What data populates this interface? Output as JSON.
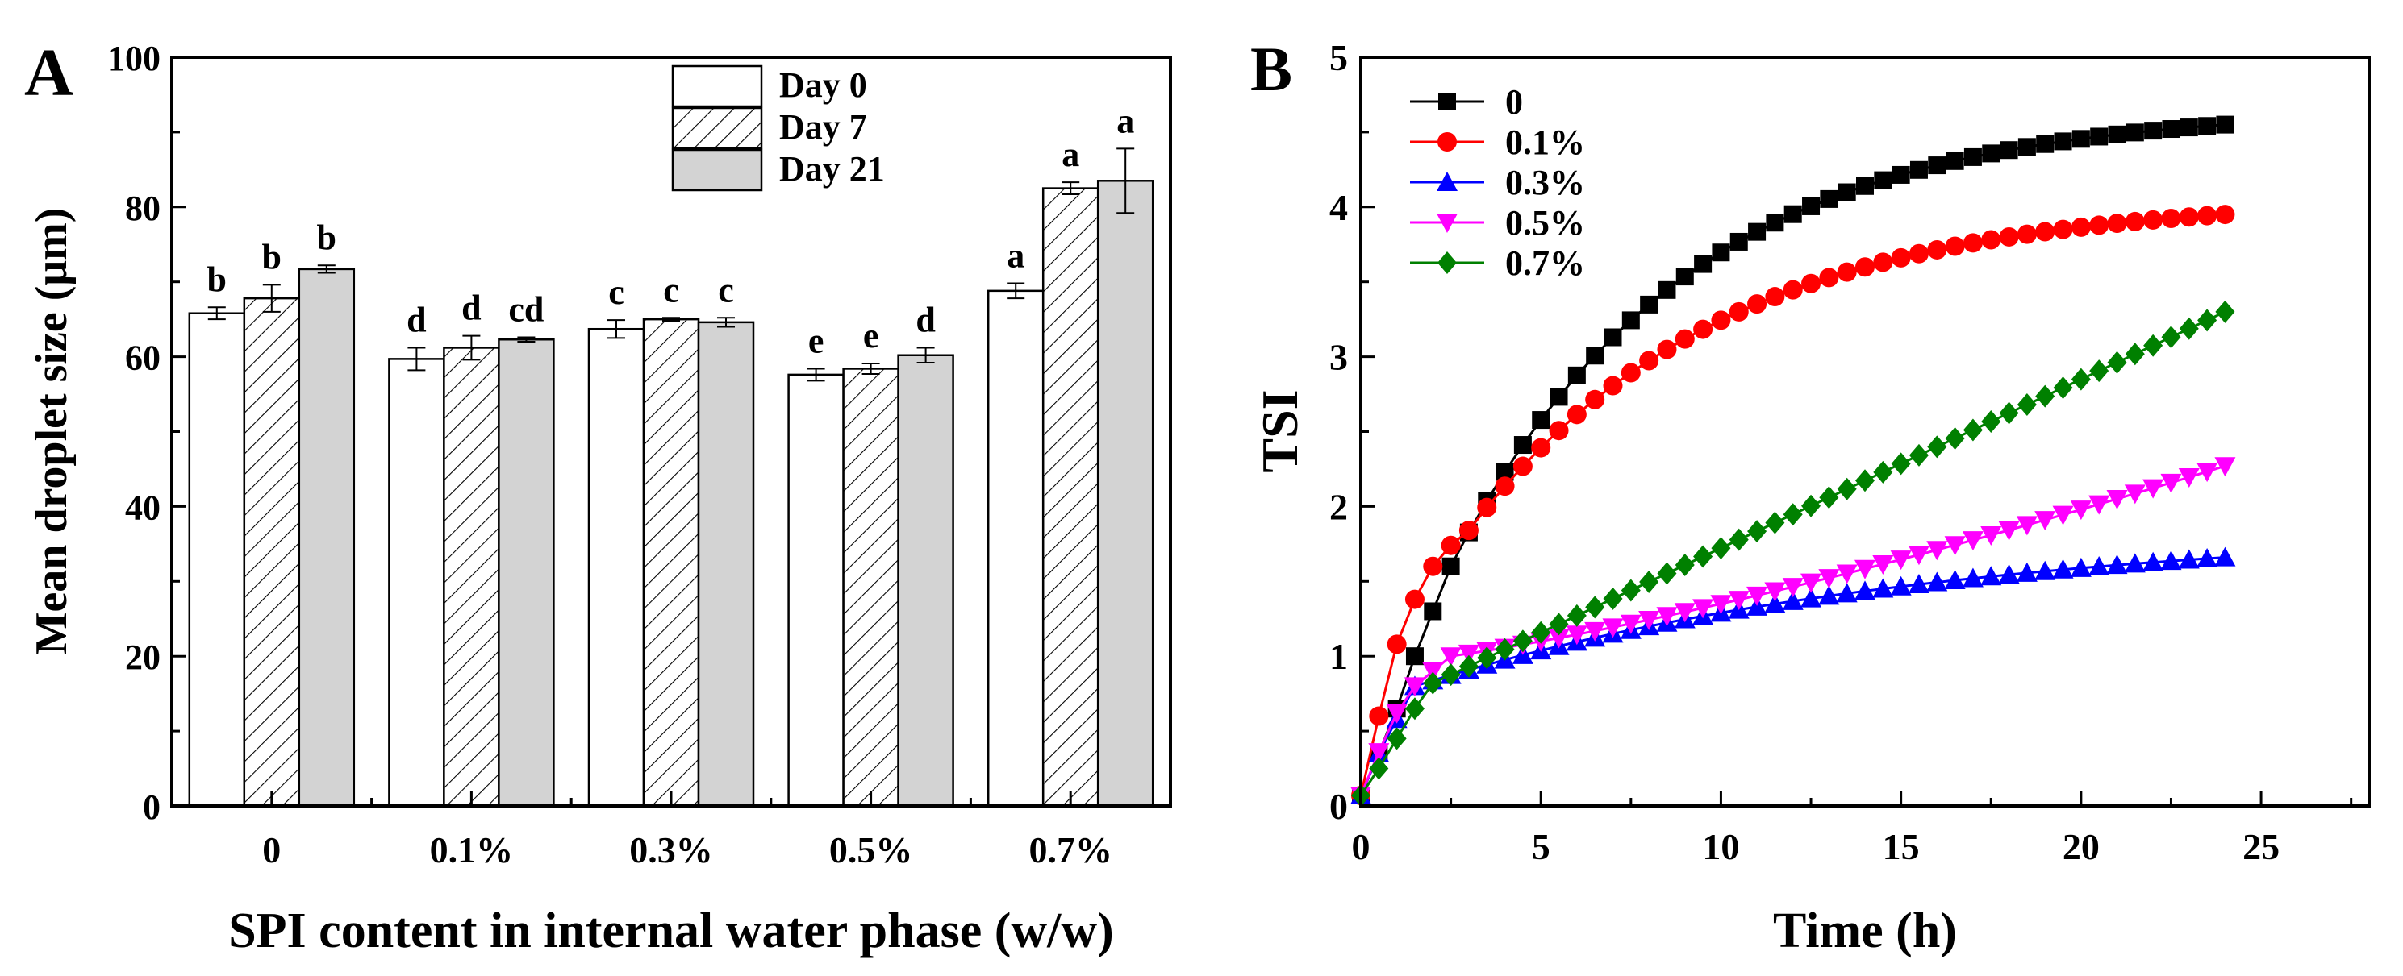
{
  "chart_data": [
    {
      "type": "bar",
      "panel_label": "A",
      "title": "",
      "xlabel": "SPI content in internal water phase (w/w)",
      "ylabel": "Mean droplet size (μm)",
      "ylim": [
        0,
        100
      ],
      "yticks": [
        0,
        20,
        40,
        60,
        80,
        100
      ],
      "categories": [
        "0",
        "0.1%",
        "0.3%",
        "0.5%",
        "0.7%"
      ],
      "legend_position": "top-center",
      "series": [
        {
          "name": "Day 0",
          "fill": "white",
          "values": [
            65.8,
            59.7,
            63.7,
            57.6,
            68.8
          ],
          "errors": [
            0.8,
            1.5,
            1.2,
            0.8,
            1.0
          ],
          "letters": [
            "b",
            "d",
            "c",
            "e",
            "a"
          ]
        },
        {
          "name": "Day 7",
          "fill": "hatched",
          "values": [
            67.8,
            61.2,
            65.0,
            58.4,
            82.5
          ],
          "errors": [
            1.8,
            1.6,
            0.2,
            0.7,
            0.8
          ],
          "letters": [
            "b",
            "d",
            "c",
            "e",
            "a"
          ]
        },
        {
          "name": "Day 21",
          "fill": "grey",
          "values": [
            71.7,
            62.3,
            64.6,
            60.2,
            83.5
          ],
          "errors": [
            0.5,
            0.3,
            0.6,
            1.0,
            4.3
          ],
          "letters": [
            "b",
            "cd",
            "c",
            "d",
            "a"
          ]
        }
      ]
    },
    {
      "type": "line",
      "panel_label": "B",
      "title": "",
      "xlabel": "Time (h)",
      "ylabel": "TSI",
      "xlim": [
        0,
        28
      ],
      "ylim": [
        0,
        5
      ],
      "xticks": [
        0,
        5,
        10,
        15,
        20,
        25
      ],
      "yticks": [
        0,
        1,
        2,
        3,
        4,
        5
      ],
      "legend_position": "top-left",
      "x_step_h": 0.5,
      "x_max_h": 24,
      "series": [
        {
          "name": "0",
          "color": "#000000",
          "marker": "square",
          "t0": 0.0,
          "t_inf": 6.9,
          "tau": 22.0,
          "switch_x": 2.5,
          "early": [
            0.07,
            0.35,
            0.65,
            1.0,
            1.3,
            1.6
          ]
        },
        {
          "name": "0.1%",
          "color": "#ff0000",
          "marker": "circle",
          "t0": 0.0,
          "t_inf": 4.42,
          "tau": 8.0,
          "c0": 0.43,
          "c1": 0.016,
          "switch_x": 3.0,
          "early": [
            0.07,
            0.6,
            1.08,
            1.38,
            1.6,
            1.74,
            1.84
          ]
        },
        {
          "name": "0.3%",
          "color": "#0000ff",
          "marker": "triangle-up",
          "t0": 0.0,
          "c0": 0.85,
          "c1": 0.034,
          "switch_x": 1.5,
          "early": [
            0.07,
            0.35,
            0.58,
            0.8
          ]
        },
        {
          "name": "0.5%",
          "color": "#ff00ff",
          "marker": "triangle-down",
          "t0": 0.0,
          "c0": 1.03,
          "c1": 0.051,
          "switch_x": 2.5,
          "early": [
            0.07,
            0.36,
            0.62,
            0.8,
            0.9,
            1.0
          ]
        },
        {
          "name": "0.7%",
          "color": "#008000",
          "marker": "diamond",
          "t0": 0.0,
          "c0": 0.74,
          "c1": 0.107,
          "switch_x": 2.0,
          "early": [
            0.07,
            0.25,
            0.45,
            0.65,
            0.82
          ]
        }
      ]
    }
  ]
}
